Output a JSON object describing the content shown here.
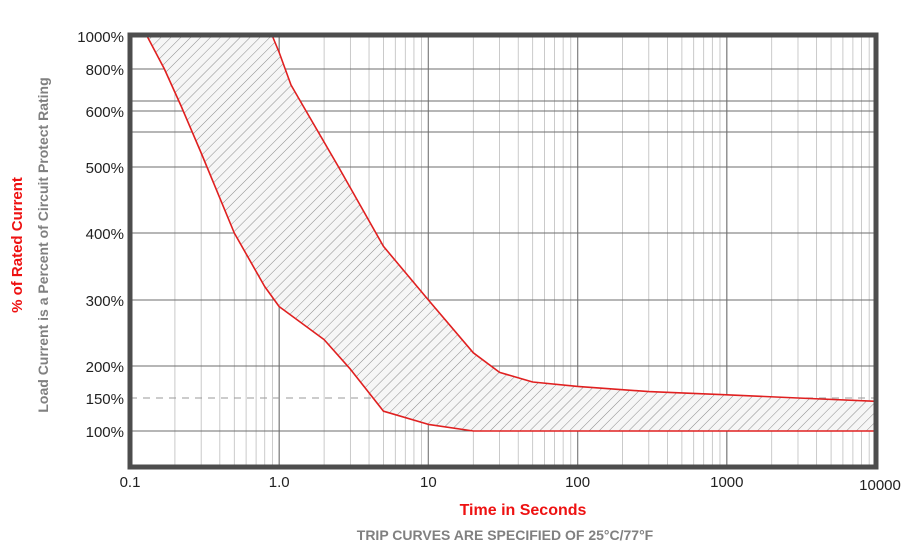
{
  "chart_data": {
    "type": "area",
    "xscale": "log",
    "xlim": [
      0.1,
      10000
    ],
    "ylim": [
      50,
      1000
    ],
    "xlabel": "Time in Seconds",
    "ylabel_primary": "% of Rated Current",
    "ylabel_secondary": "Load Current is a Percent of Circuit Protect Rating",
    "footnote": "TRIP CURVES ARE SPECIFIED OF 25°C/77°F",
    "x_ticks": [
      {
        "value": 0.1,
        "label": "0.1"
      },
      {
        "value": 1,
        "label": "1.0"
      },
      {
        "value": 10,
        "label": "10"
      },
      {
        "value": 100,
        "label": "100"
      },
      {
        "value": 1000,
        "label": "1000"
      },
      {
        "value": 10000,
        "label": "10000"
      }
    ],
    "y_ticks": [
      {
        "value": 1000,
        "label": "1000%"
      },
      {
        "value": 800,
        "label": "800%"
      },
      {
        "value": 600,
        "label": "600%"
      },
      {
        "value": 500,
        "label": "500%"
      },
      {
        "value": 400,
        "label": "400%"
      },
      {
        "value": 300,
        "label": "300%"
      },
      {
        "value": 200,
        "label": "200%"
      },
      {
        "value": 150,
        "label": "150%"
      },
      {
        "value": 100,
        "label": "100%"
      }
    ],
    "extra_gridlines_y": [
      700,
      550
    ],
    "reference_line": {
      "value": 150,
      "style": "dashed"
    },
    "series": [
      {
        "role": "lower-bound",
        "points": [
          [
            0.13,
            1000
          ],
          [
            0.17,
            800
          ],
          [
            0.22,
            650
          ],
          [
            0.3,
            520
          ],
          [
            0.5,
            400
          ],
          [
            0.8,
            320
          ],
          [
            1.0,
            290
          ],
          [
            2.0,
            240
          ],
          [
            3.0,
            195
          ],
          [
            5.0,
            130
          ],
          [
            10.0,
            110
          ],
          [
            20.0,
            100
          ],
          [
            10000,
            100
          ]
        ]
      },
      {
        "role": "upper-bound",
        "points": [
          [
            0.9,
            1000
          ],
          [
            1.0,
            900
          ],
          [
            1.2,
            750
          ],
          [
            1.5,
            610
          ],
          [
            2.5,
            500
          ],
          [
            5.0,
            380
          ],
          [
            10.0,
            300
          ],
          [
            20.0,
            220
          ],
          [
            30.0,
            190
          ],
          [
            50.0,
            175
          ],
          [
            100.0,
            168
          ],
          [
            300.0,
            160
          ],
          [
            1000.0,
            155
          ],
          [
            3000.0,
            150
          ],
          [
            10000,
            145
          ]
        ]
      }
    ],
    "colors": {
      "curve": "#e02020",
      "axis_title": "#ee1111",
      "label_gray": "#808080",
      "frame": "#4d4d4d",
      "grid": "#999999",
      "hatch": "#8c8c8c"
    }
  }
}
